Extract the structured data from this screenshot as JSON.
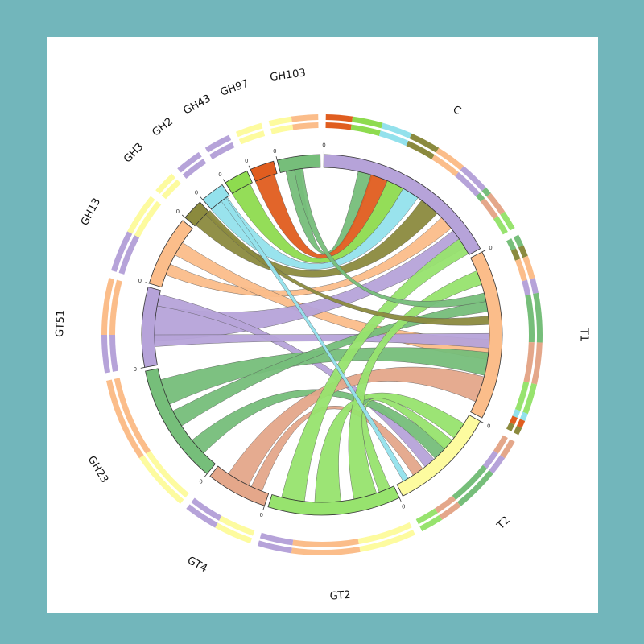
{
  "colors": {
    "background": "#72b6bb",
    "panel": "#ffffff"
  },
  "sectors": [
    {
      "name": "C",
      "color": "#b6a3d9",
      "start": 0,
      "end": 62
    },
    {
      "name": "T1",
      "color": "#fbbd8a",
      "start": 62,
      "end": 118
    },
    {
      "name": "T2",
      "color": "#fdfb9f",
      "start": 118,
      "end": 154
    },
    {
      "name": "GT2",
      "color": "#97e36e",
      "start": 154,
      "end": 198
    },
    {
      "name": "GT4",
      "color": "#e4a78a",
      "start": 198,
      "end": 219
    },
    {
      "name": "GH23",
      "color": "#76be7a",
      "start": 219,
      "end": 259
    },
    {
      "name": "GT51",
      "color": "#b6a3d9",
      "start": 259,
      "end": 286
    },
    {
      "name": "GH13",
      "color": "#fbbd8a",
      "start": 286,
      "end": 310
    },
    {
      "name": "GH3",
      "color": "#8b8a3e",
      "start": 310,
      "end": 318
    },
    {
      "name": "GH2",
      "color": "#93e1ec",
      "start": 318,
      "end": 327
    },
    {
      "name": "GH43",
      "color": "#8edb4f",
      "start": 327,
      "end": 336
    },
    {
      "name": "GH97",
      "color": "#e05d1f",
      "start": 336,
      "end": 345
    },
    {
      "name": "GH103",
      "color": "#76be7a",
      "start": 345,
      "end": 360
    }
  ],
  "tick_label": "0",
  "chords": [
    {
      "from": 350,
      "w1": 5,
      "to": 15,
      "w2": 5,
      "color": "#76be7a"
    },
    {
      "from": 340,
      "w1": 7,
      "to": 20,
      "w2": 6,
      "color": "#e05d1f"
    },
    {
      "from": 331,
      "w1": 7,
      "to": 26,
      "w2": 6,
      "color": "#8edb4f"
    },
    {
      "from": 322,
      "w1": 7,
      "to": 32,
      "w2": 6,
      "color": "#93e1ec"
    },
    {
      "from": 314,
      "w1": 6,
      "to": 40,
      "w2": 7,
      "color": "#8b8a3e"
    },
    {
      "from": 293,
      "w1": 4,
      "to": 48,
      "w2": 5,
      "color": "#fbbd8a"
    },
    {
      "from": 301,
      "w1": 5,
      "to": 95,
      "w2": 7,
      "color": "#fbbd8a"
    },
    {
      "from": 274,
      "w1": 12,
      "to": 55,
      "w2": 7,
      "color": "#b6a3d9"
    },
    {
      "from": 282,
      "w1": 4,
      "to": 140,
      "w2": 4,
      "color": "#b6a3d9"
    },
    {
      "from": 268,
      "w1": 4,
      "to": 92,
      "w2": 5,
      "color": "#b6a3d9"
    },
    {
      "from": 250,
      "w1": 9,
      "to": 100,
      "w2": 8,
      "color": "#76be7a"
    },
    {
      "from": 240,
      "w1": 6,
      "to": 80,
      "w2": 4,
      "color": "#76be7a"
    },
    {
      "from": 228,
      "w1": 6,
      "to": 135,
      "w2": 5,
      "color": "#76be7a"
    },
    {
      "from": 210,
      "w1": 8,
      "to": 109,
      "w2": 9,
      "color": "#e4a78a"
    },
    {
      "from": 203,
      "w1": 4,
      "to": 145,
      "w2": 4,
      "color": "#e4a78a"
    },
    {
      "from": 190,
      "w1": 8,
      "to": 58,
      "w2": 6,
      "color": "#97e36e"
    },
    {
      "from": 178,
      "w1": 9,
      "to": 125,
      "w2": 6,
      "color": "#97e36e"
    },
    {
      "from": 165,
      "w1": 8,
      "to": 70,
      "w2": 5,
      "color": "#97e36e"
    },
    {
      "from": 158,
      "w1": 4,
      "to": 131,
      "w2": 4,
      "color": "#97e36e"
    },
    {
      "from": 352,
      "w1": 3,
      "to": 77,
      "w2": 3,
      "color": "#76be7a"
    },
    {
      "from": 317,
      "w1": 2,
      "to": 85,
      "w2": 3,
      "color": "#8b8a3e"
    },
    {
      "from": 324,
      "w1": 2,
      "to": 150,
      "w2": 2,
      "color": "#93e1ec"
    }
  ],
  "outer_ring": {
    "inner_track": [
      {
        "start": 1,
        "end": 8,
        "color": "#e05d1f"
      },
      {
        "start": 8,
        "end": 16,
        "color": "#8edb4f"
      },
      {
        "start": 16,
        "end": 24,
        "color": "#93e1ec"
      },
      {
        "start": 24,
        "end": 32,
        "color": "#8b8a3e"
      },
      {
        "start": 32,
        "end": 40,
        "color": "#fbbd8a"
      },
      {
        "start": 40,
        "end": 48,
        "color": "#b6a3d9"
      },
      {
        "start": 48,
        "end": 50,
        "color": "#76be7a"
      },
      {
        "start": 50,
        "end": 56,
        "color": "#e4a78a"
      },
      {
        "start": 56,
        "end": 61,
        "color": "#97e36e"
      },
      {
        "start": 63,
        "end": 66,
        "color": "#76be7a"
      },
      {
        "start": 66,
        "end": 69,
        "color": "#8b8a3e"
      },
      {
        "start": 69,
        "end": 75,
        "color": "#fbbd8a"
      },
      {
        "start": 75,
        "end": 79,
        "color": "#b6a3d9"
      },
      {
        "start": 79,
        "end": 92,
        "color": "#76be7a"
      },
      {
        "start": 92,
        "end": 103,
        "color": "#e4a78a"
      },
      {
        "start": 103,
        "end": 111,
        "color": "#97e36e"
      },
      {
        "start": 111,
        "end": 113,
        "color": "#93e1ec"
      },
      {
        "start": 113,
        "end": 115,
        "color": "#e05d1f"
      },
      {
        "start": 115,
        "end": 117,
        "color": "#8b8a3e"
      },
      {
        "start": 119,
        "end": 124,
        "color": "#e4a78a"
      },
      {
        "start": 124,
        "end": 129,
        "color": "#b6a3d9"
      },
      {
        "start": 129,
        "end": 141,
        "color": "#76be7a"
      },
      {
        "start": 141,
        "end": 147,
        "color": "#e4a78a"
      },
      {
        "start": 147,
        "end": 153,
        "color": "#97e36e"
      },
      {
        "start": 155,
        "end": 170,
        "color": "#fdfb9f"
      },
      {
        "start": 170,
        "end": 188,
        "color": "#fbbd8a"
      },
      {
        "start": 188,
        "end": 197,
        "color": "#b6a3d9"
      },
      {
        "start": 199,
        "end": 209,
        "color": "#fdfb9f"
      },
      {
        "start": 209,
        "end": 218,
        "color": "#b6a3d9"
      },
      {
        "start": 220,
        "end": 236,
        "color": "#fdfb9f"
      },
      {
        "start": 236,
        "end": 258,
        "color": "#fbbd8a"
      },
      {
        "start": 260,
        "end": 270,
        "color": "#b6a3d9"
      },
      {
        "start": 270,
        "end": 285,
        "color": "#fbbd8a"
      },
      {
        "start": 287,
        "end": 298,
        "color": "#b6a3d9"
      },
      {
        "start": 298,
        "end": 309,
        "color": "#fdfb9f"
      },
      {
        "start": 311,
        "end": 317,
        "color": "#fdfb9f"
      },
      {
        "start": 319,
        "end": 326,
        "color": "#b6a3d9"
      },
      {
        "start": 328,
        "end": 335,
        "color": "#b6a3d9"
      },
      {
        "start": 337,
        "end": 344,
        "color": "#fdfb9f"
      },
      {
        "start": 346,
        "end": 352,
        "color": "#fdfb9f"
      },
      {
        "start": 352,
        "end": 359,
        "color": "#fbbd8a"
      }
    ],
    "outer_track": [
      {
        "start": 1,
        "end": 8,
        "color": "#e05d1f"
      },
      {
        "start": 8,
        "end": 16,
        "color": "#8edb4f"
      },
      {
        "start": 16,
        "end": 24,
        "color": "#93e1ec"
      },
      {
        "start": 24,
        "end": 32,
        "color": "#8b8a3e"
      },
      {
        "start": 32,
        "end": 40,
        "color": "#fbbd8a"
      },
      {
        "start": 40,
        "end": 48,
        "color": "#b6a3d9"
      },
      {
        "start": 48,
        "end": 50,
        "color": "#76be7a"
      },
      {
        "start": 50,
        "end": 56,
        "color": "#e4a78a"
      },
      {
        "start": 56,
        "end": 61,
        "color": "#97e36e"
      },
      {
        "start": 63,
        "end": 66,
        "color": "#76be7a"
      },
      {
        "start": 66,
        "end": 69,
        "color": "#8b8a3e"
      },
      {
        "start": 69,
        "end": 75,
        "color": "#fbbd8a"
      },
      {
        "start": 75,
        "end": 79,
        "color": "#b6a3d9"
      },
      {
        "start": 79,
        "end": 92,
        "color": "#76be7a"
      },
      {
        "start": 92,
        "end": 103,
        "color": "#e4a78a"
      },
      {
        "start": 103,
        "end": 111,
        "color": "#97e36e"
      },
      {
        "start": 111,
        "end": 113,
        "color": "#93e1ec"
      },
      {
        "start": 113,
        "end": 115,
        "color": "#e05d1f"
      },
      {
        "start": 115,
        "end": 117,
        "color": "#8b8a3e"
      },
      {
        "start": 119,
        "end": 124,
        "color": "#e4a78a"
      },
      {
        "start": 124,
        "end": 129,
        "color": "#b6a3d9"
      },
      {
        "start": 129,
        "end": 141,
        "color": "#76be7a"
      },
      {
        "start": 141,
        "end": 147,
        "color": "#e4a78a"
      },
      {
        "start": 147,
        "end": 153,
        "color": "#97e36e"
      },
      {
        "start": 155,
        "end": 170,
        "color": "#fdfb9f"
      },
      {
        "start": 170,
        "end": 188,
        "color": "#fbbd8a"
      },
      {
        "start": 188,
        "end": 197,
        "color": "#b6a3d9"
      },
      {
        "start": 199,
        "end": 209,
        "color": "#fdfb9f"
      },
      {
        "start": 209,
        "end": 218,
        "color": "#b6a3d9"
      },
      {
        "start": 220,
        "end": 236,
        "color": "#fdfb9f"
      },
      {
        "start": 236,
        "end": 258,
        "color": "#fbbd8a"
      },
      {
        "start": 260,
        "end": 270,
        "color": "#b6a3d9"
      },
      {
        "start": 270,
        "end": 285,
        "color": "#fbbd8a"
      },
      {
        "start": 287,
        "end": 298,
        "color": "#b6a3d9"
      },
      {
        "start": 298,
        "end": 309,
        "color": "#fdfb9f"
      },
      {
        "start": 311,
        "end": 317,
        "color": "#fdfb9f"
      },
      {
        "start": 319,
        "end": 326,
        "color": "#b6a3d9"
      },
      {
        "start": 328,
        "end": 335,
        "color": "#b6a3d9"
      },
      {
        "start": 337,
        "end": 344,
        "color": "#fdfb9f"
      },
      {
        "start": 346,
        "end": 352,
        "color": "#fdfb9f"
      },
      {
        "start": 352,
        "end": 359,
        "color": "#fbbd8a"
      }
    ]
  }
}
